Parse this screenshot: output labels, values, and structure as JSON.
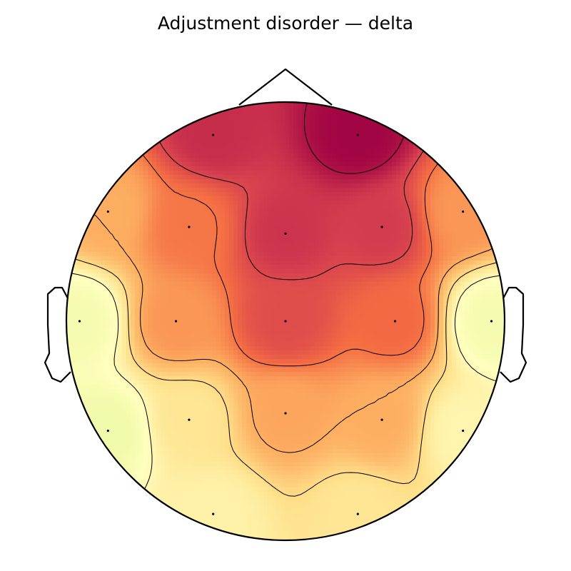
{
  "chart_data": {
    "type": "heatmap",
    "title": "Adjustment disorder — delta",
    "colormap": "Spectral_r",
    "value_range": [
      0,
      1
    ],
    "grid": false,
    "legend": "none",
    "electrodes": [
      {
        "x": -0.33,
        "y": 0.85,
        "value": 0.88
      },
      {
        "x": 0.33,
        "y": 0.85,
        "value": 0.99
      },
      {
        "x": -0.81,
        "y": 0.5,
        "value": 0.5
      },
      {
        "x": -0.44,
        "y": 0.43,
        "value": 0.64
      },
      {
        "x": 0.0,
        "y": 0.4,
        "value": 0.86
      },
      {
        "x": 0.44,
        "y": 0.43,
        "value": 0.84
      },
      {
        "x": 0.81,
        "y": 0.5,
        "value": 0.56
      },
      {
        "x": -0.94,
        "y": 0.0,
        "value": 0.1
      },
      {
        "x": -0.5,
        "y": 0.0,
        "value": 0.56
      },
      {
        "x": 0.0,
        "y": 0.0,
        "value": 0.78
      },
      {
        "x": 0.5,
        "y": 0.0,
        "value": 0.68
      },
      {
        "x": 0.94,
        "y": 0.0,
        "value": 0.1
      },
      {
        "x": -0.81,
        "y": -0.5,
        "value": 0.08
      },
      {
        "x": -0.44,
        "y": -0.45,
        "value": 0.3
      },
      {
        "x": 0.0,
        "y": -0.42,
        "value": 0.52
      },
      {
        "x": 0.44,
        "y": -0.45,
        "value": 0.5
      },
      {
        "x": 0.81,
        "y": -0.5,
        "value": 0.22
      },
      {
        "x": -0.33,
        "y": -0.88,
        "value": 0.24
      },
      {
        "x": 0.33,
        "y": -0.88,
        "value": 0.3
      }
    ]
  }
}
